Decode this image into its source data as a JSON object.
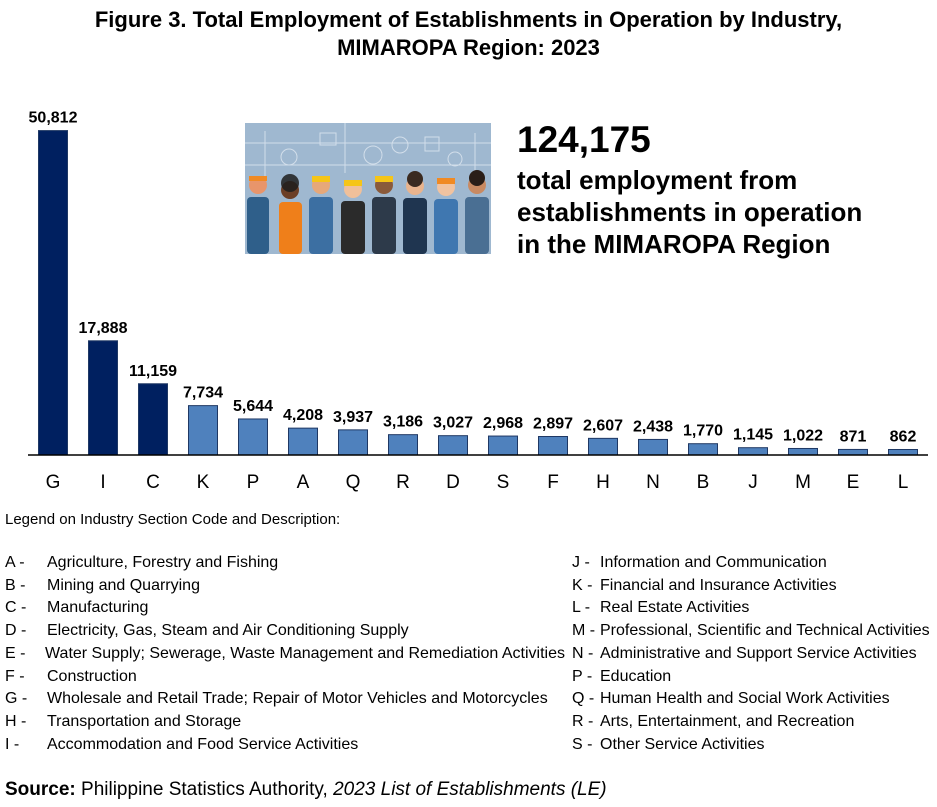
{
  "title_line1": "Figure 3. Total Employment of Establishments in Operation by Industry,",
  "title_line2": "MIMAROPA Region: 2023",
  "callout": {
    "total": "124,175",
    "line1": "total employment from",
    "line2": "establishments in operation",
    "line3": "in the MIMAROPA Region"
  },
  "colors": {
    "highlight_bar": "#002060",
    "regular_bar": "#4F81BD",
    "bar_border": "#1F3864"
  },
  "chart_data": {
    "type": "bar",
    "categories": [
      "G",
      "I",
      "C",
      "K",
      "P",
      "A",
      "Q",
      "R",
      "D",
      "S",
      "F",
      "H",
      "N",
      "B",
      "J",
      "M",
      "E",
      "L"
    ],
    "values": [
      50812,
      17888,
      11159,
      7734,
      5644,
      4208,
      3937,
      3186,
      3027,
      2968,
      2897,
      2607,
      2438,
      1770,
      1145,
      1022,
      871,
      862
    ],
    "data_labels": [
      "50,812",
      "17,888",
      "11,159",
      "7,734",
      "5,644",
      "4,208",
      "3,937",
      "3,186",
      "3,027",
      "2,968",
      "2,897",
      "2,607",
      "2,438",
      "1,770",
      "1,145",
      "1,022",
      "871",
      "862"
    ],
    "highlighted_categories": [
      "G",
      "I",
      "C"
    ],
    "ylim": [
      0,
      52000
    ],
    "grid": false,
    "xlabel": "",
    "ylabel": ""
  },
  "legend_title": "Legend on Industry Section Code and Description:",
  "legend_left": [
    {
      "code": "A -",
      "desc": "Agriculture, Forestry and Fishing"
    },
    {
      "code": "B -",
      "desc": "Mining and Quarrying"
    },
    {
      "code": "C -",
      "desc": "Manufacturing"
    },
    {
      "code": "D -",
      "desc": "Electricity, Gas, Steam and Air Conditioning Supply"
    },
    {
      "code": "E -",
      "desc": "Water Supply; Sewerage, Waste Management and Remediation Activities"
    },
    {
      "code": "F -",
      "desc": "Construction"
    },
    {
      "code": "G -",
      "desc": "Wholesale and Retail Trade; Repair of Motor Vehicles and Motorcycles"
    },
    {
      "code": "H -",
      "desc": "Transportation and Storage"
    },
    {
      "code": "I -",
      "desc": "Accommodation and Food Service Activities"
    }
  ],
  "legend_right": [
    {
      "code": "J -",
      "desc": "Information and Communication"
    },
    {
      "code": "K -",
      "desc": "Financial and Insurance Activities"
    },
    {
      "code": "L -",
      "desc": "Real Estate Activities"
    },
    {
      "code": "M -",
      "desc": "Professional, Scientific and Technical Activities"
    },
    {
      "code": "N -",
      "desc": "Administrative and Support Service Activities"
    },
    {
      "code": "P -",
      "desc": "Education"
    },
    {
      "code": "Q -",
      "desc": "Human Health and Social Work Activities"
    },
    {
      "code": "R -",
      "desc": "Arts, Entertainment, and Recreation"
    },
    {
      "code": "S -",
      "desc": "Other Service Activities"
    }
  ],
  "source": {
    "label": "Source:",
    "agency": "Philippine Statistics Authority,",
    "publication": "2023 List of Establishments (LE)"
  }
}
